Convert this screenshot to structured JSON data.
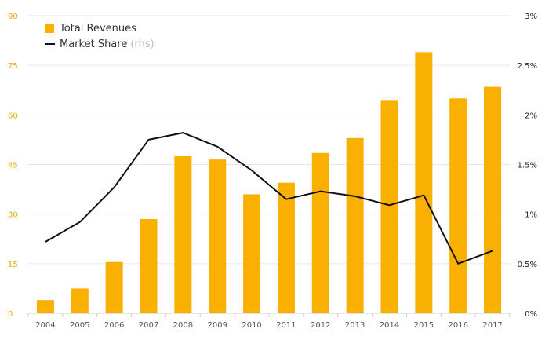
{
  "legend": {
    "bars_label": "Total Revenues",
    "line_label": "Market Share",
    "line_suffix": "(rhs)"
  },
  "colors": {
    "bar": "#f9b000",
    "line": "#111111",
    "left_ticks": "#f0a800",
    "grid": "#e6e6e6"
  },
  "chart_data": {
    "type": "bar",
    "categories": [
      "2004",
      "2005",
      "2006",
      "2007",
      "2008",
      "2009",
      "2010",
      "2011",
      "2012",
      "2013",
      "2014",
      "2015",
      "2016",
      "2017"
    ],
    "series": [
      {
        "name": "Total Revenues",
        "type": "bar",
        "axis": "left",
        "values": [
          4,
          7.5,
          15.5,
          28.5,
          47.5,
          46.5,
          36,
          39.5,
          48.5,
          53,
          64.5,
          79,
          65,
          68.5
        ]
      },
      {
        "name": "Market Share",
        "type": "line",
        "axis": "right",
        "values": [
          0.72,
          0.92,
          1.27,
          1.75,
          1.82,
          1.68,
          1.44,
          1.15,
          1.23,
          1.18,
          1.09,
          1.19,
          0.5,
          0.63
        ]
      }
    ],
    "y_left": {
      "ticks": [
        "0",
        "15",
        "30",
        "45",
        "60",
        "75",
        "90"
      ],
      "ylim": [
        0,
        90
      ]
    },
    "y_right": {
      "ticks": [
        "0%",
        "0.5%",
        "1%",
        "1.5%",
        "2%",
        "2.5%",
        "3%"
      ],
      "ylim": [
        0,
        3
      ]
    },
    "grid": true,
    "legend_position": "top-left"
  }
}
